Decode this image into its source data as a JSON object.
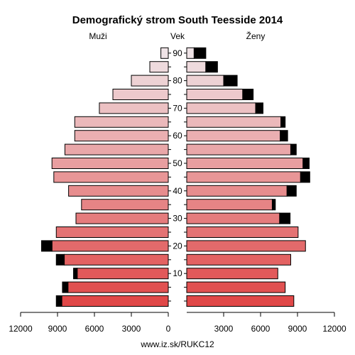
{
  "chart_data": {
    "type": "bar",
    "title": "Demografický strom South Teesside 2014",
    "left_label": "Muži",
    "center_label": "Vek",
    "right_label": "Ženy",
    "footer": "www.iz.sk/RUKC12",
    "age_groups": [
      "0-4",
      "5-9",
      "10-14",
      "15-19",
      "20-24",
      "25-29",
      "30-34",
      "35-39",
      "40-44",
      "45-49",
      "50-54",
      "55-59",
      "60-64",
      "65-69",
      "70-74",
      "75-79",
      "80-84",
      "85-89",
      "90+"
    ],
    "age_tick_labels": [
      "10",
      "20",
      "30",
      "40",
      "50",
      "60",
      "70",
      "80",
      "90"
    ],
    "age_tick_groups": [
      2,
      4,
      6,
      8,
      10,
      12,
      14,
      16,
      18
    ],
    "x_ticks": [
      12000,
      9000,
      6000,
      3000,
      0,
      3000,
      6000,
      9000,
      12000
    ],
    "x_range": [
      0,
      12000
    ],
    "series": [
      {
        "name": "Muži",
        "values": [
          8650,
          8150,
          7400,
          8450,
          9450,
          9100,
          7500,
          7050,
          8100,
          9300,
          9450,
          8400,
          7600,
          7600,
          5600,
          4500,
          3000,
          1500,
          600
        ]
      },
      {
        "name": "Muži (prebytok)",
        "values": [
          450,
          450,
          300,
          650,
          850,
          0,
          0,
          0,
          0,
          0,
          0,
          0,
          0,
          0,
          0,
          0,
          0,
          0,
          0
        ]
      },
      {
        "name": "Ženy",
        "values": [
          8700,
          8000,
          7400,
          8450,
          9650,
          9050,
          7550,
          6950,
          8150,
          9250,
          9450,
          8450,
          7600,
          7650,
          5600,
          4550,
          3000,
          1550,
          600
        ]
      },
      {
        "name": "Ženy (prebytok)",
        "values": [
          0,
          0,
          0,
          0,
          0,
          0,
          850,
          250,
          750,
          750,
          500,
          450,
          600,
          350,
          600,
          850,
          1100,
          950,
          950
        ]
      }
    ],
    "colors": {
      "young": "#e04848",
      "old": "#efe3e6",
      "surplus": "#000000",
      "outline": "#000000"
    },
    "grid": false
  }
}
